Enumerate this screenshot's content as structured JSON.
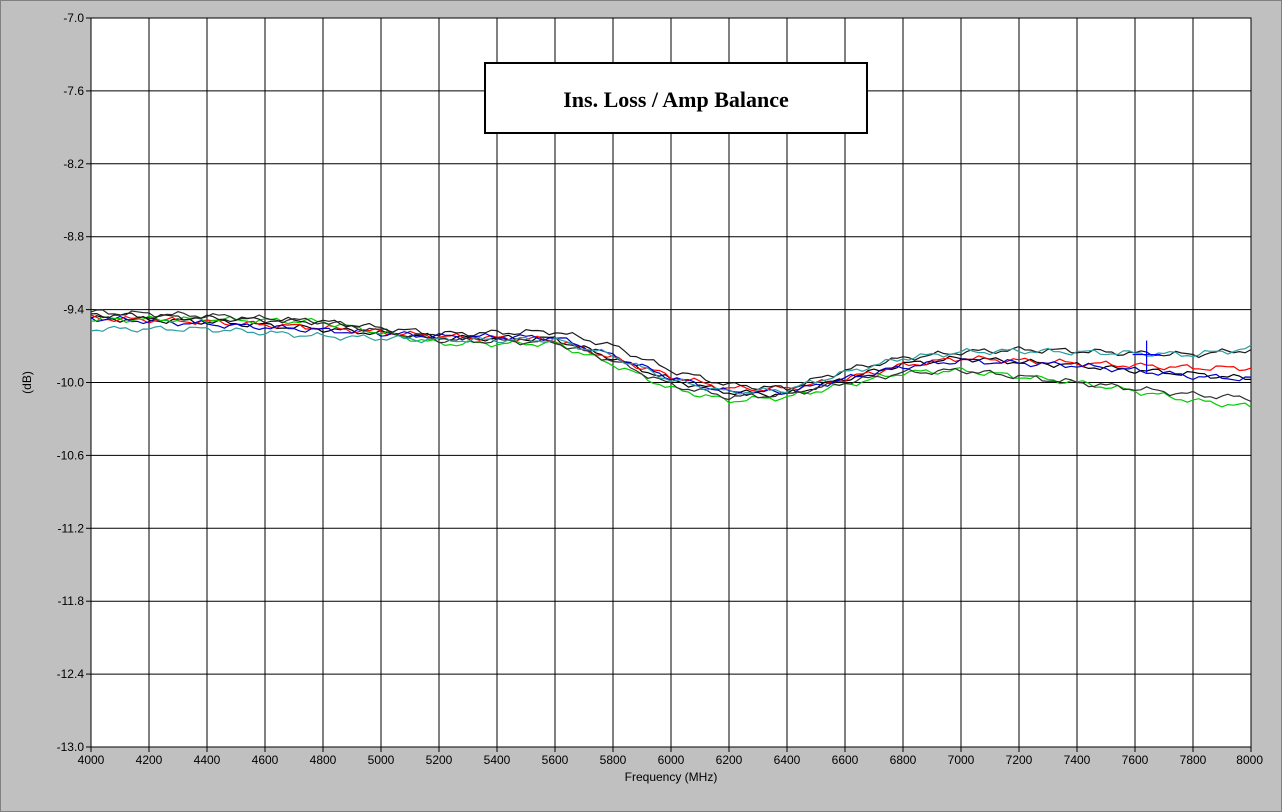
{
  "chart_data": {
    "type": "line",
    "title": "Ins. Loss / Amp Balance",
    "xlabel": "Frequency (MHz)",
    "ylabel": "(dB)",
    "xlim": [
      4000,
      8000
    ],
    "ylim": [
      -13.0,
      -7.0
    ],
    "grid": true,
    "x_ticks": [
      "4000",
      "4200",
      "4400",
      "4600",
      "4800",
      "5000",
      "5200",
      "5400",
      "5600",
      "5800",
      "6000",
      "6200",
      "6400",
      "6600",
      "6800",
      "7000",
      "7200",
      "7400",
      "7600",
      "7800",
      "8000"
    ],
    "y_ticks": [
      "-7.0",
      "-7.6",
      "-8.2",
      "-8.8",
      "-9.4",
      "-10.0",
      "-10.6",
      "-11.2",
      "-11.8",
      "-12.4",
      "-13.0"
    ],
    "x": [
      4000,
      4400,
      4800,
      5200,
      5600,
      5800,
      6000,
      6200,
      6400,
      6600,
      6800,
      7000,
      7200,
      7400,
      7600,
      7800,
      8000
    ],
    "series": [
      {
        "color": "#000000",
        "values": [
          -9.47,
          -9.5,
          -9.56,
          -9.63,
          -9.64,
          -9.8,
          -9.98,
          -10.08,
          -10.1,
          -9.97,
          -9.85,
          -9.8,
          -9.83,
          -9.86,
          -9.9,
          -9.93,
          -9.97
        ]
      },
      {
        "color": "#ff0000",
        "values": [
          -9.47,
          -9.5,
          -9.55,
          -9.62,
          -9.65,
          -9.8,
          -9.95,
          -10.05,
          -10.05,
          -9.97,
          -9.86,
          -9.8,
          -9.82,
          -9.84,
          -9.86,
          -9.88,
          -9.88
        ]
      },
      {
        "color": "#0000cc",
        "values": [
          -9.47,
          -9.52,
          -9.57,
          -9.62,
          -9.63,
          -9.78,
          -9.96,
          -10.08,
          -10.08,
          -9.97,
          -9.87,
          -9.82,
          -9.84,
          -9.86,
          -9.9,
          -9.95,
          -9.97
        ]
      },
      {
        "color": "#00cc00",
        "values": [
          -9.48,
          -9.48,
          -9.5,
          -9.68,
          -9.68,
          -9.85,
          -10.05,
          -10.15,
          -10.12,
          -10.02,
          -9.92,
          -9.9,
          -9.95,
          -10.0,
          -10.07,
          -10.15,
          -10.2
        ]
      },
      {
        "color": "#303030",
        "values": [
          -9.42,
          -9.45,
          -9.5,
          -9.65,
          -9.67,
          -9.82,
          -10.02,
          -10.12,
          -10.1,
          -10.0,
          -9.92,
          -9.9,
          -9.95,
          -10.0,
          -10.05,
          -10.1,
          -10.13
        ]
      },
      {
        "color": "#1a1a1a",
        "values": [
          -9.44,
          -9.47,
          -9.5,
          -9.6,
          -9.58,
          -9.7,
          -9.9,
          -10.02,
          -10.05,
          -9.9,
          -9.8,
          -9.75,
          -9.73,
          -9.74,
          -9.76,
          -9.77,
          -9.73
        ]
      },
      {
        "color": "#2a9d9d",
        "values": [
          -9.56,
          -9.56,
          -9.62,
          -9.65,
          -9.65,
          -9.78,
          -9.98,
          -10.08,
          -10.06,
          -9.92,
          -9.8,
          -9.75,
          -9.74,
          -9.75,
          -9.76,
          -9.77,
          -9.72
        ]
      }
    ],
    "cursor": {
      "x": 7640,
      "y": -9.77,
      "color": "#0000ff"
    }
  }
}
